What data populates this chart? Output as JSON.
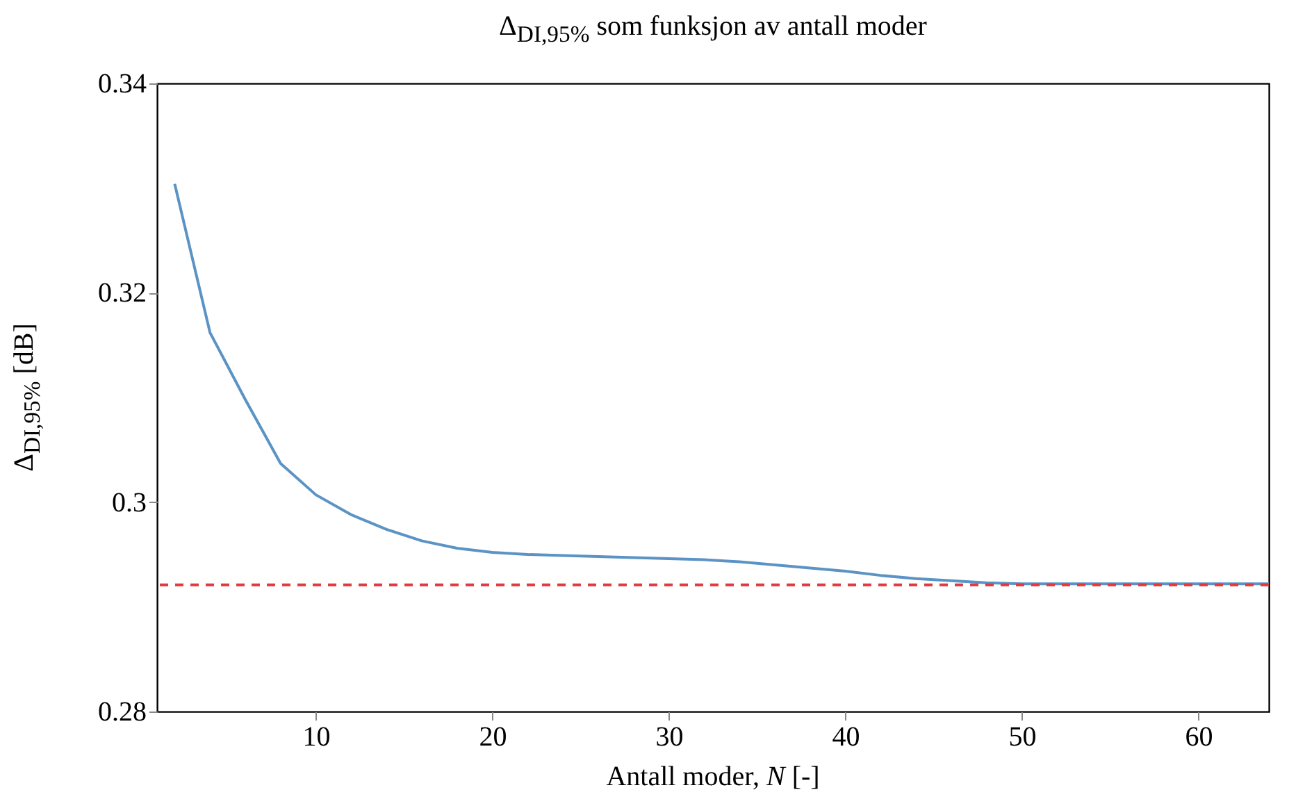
{
  "chart_data": {
    "type": "line",
    "title": "Δ$_{DI,95%}$ som funksjon av antall moder",
    "xlabel": "Antall moder, N [-]",
    "ylabel": "Δ$_{DI,95%}$ [dB]",
    "x": [
      2,
      4,
      6,
      8,
      10,
      12,
      14,
      16,
      18,
      20,
      22,
      24,
      26,
      28,
      30,
      32,
      34,
      36,
      38,
      40,
      42,
      44,
      46,
      48,
      50,
      52,
      54,
      56,
      58,
      60,
      62,
      64
    ],
    "series": [
      {
        "color": "#5b93c5",
        "values": [
          0.3304,
          0.3162,
          0.3098,
          0.3037,
          0.3007,
          0.2988,
          0.2974,
          0.2963,
          0.2956,
          0.2952,
          0.295,
          0.2949,
          0.2948,
          0.2947,
          0.2946,
          0.2945,
          0.2943,
          0.294,
          0.2937,
          0.2934,
          0.293,
          0.2927,
          0.2925,
          0.2923,
          0.2922,
          0.2922,
          0.2922,
          0.2922,
          0.2922,
          0.2922,
          0.2922,
          0.2922
        ]
      }
    ],
    "ref_lines": [
      {
        "axis": "y",
        "value": 0.2921,
        "color": "#e0393e",
        "line_style": "dashed"
      }
    ],
    "xlim": [
      1,
      64
    ],
    "xticks": [
      10,
      20,
      30,
      40,
      50,
      60
    ],
    "ylim": [
      0.28,
      0.34
    ],
    "yticks": [
      0.28,
      0.3,
      0.32,
      0.34
    ],
    "grid": false,
    "marker": "none",
    "line_style": "solid"
  }
}
